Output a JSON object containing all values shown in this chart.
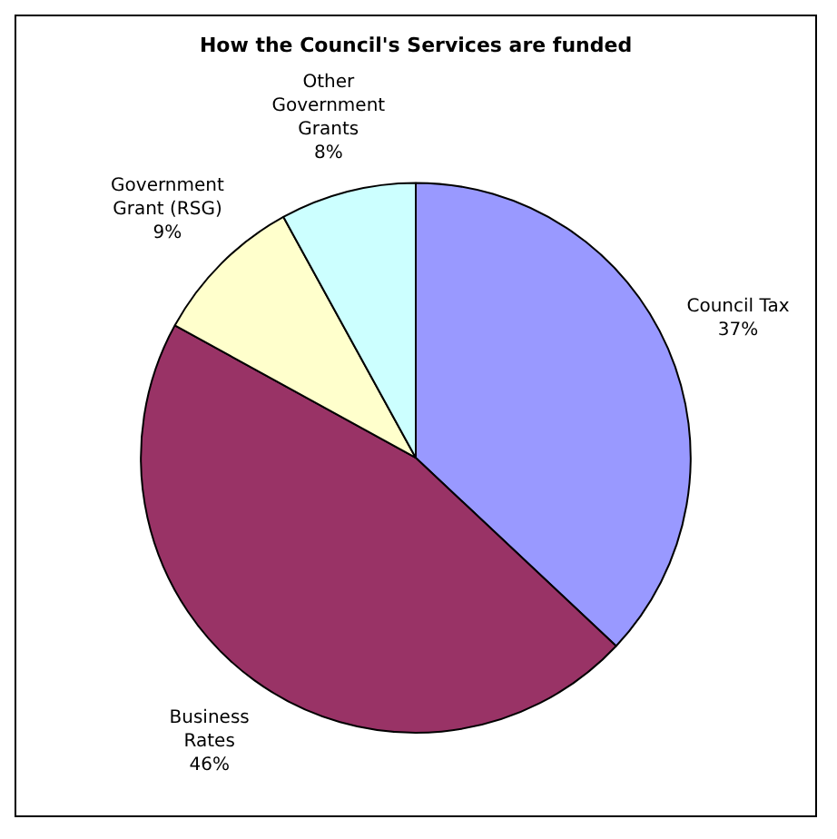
{
  "chart_data": {
    "type": "pie",
    "title": "How the Council's Services are funded",
    "categories": [
      "Council Tax",
      "Business Rates",
      "Government Grant (RSG)",
      "Other Government Grants"
    ],
    "values": [
      37,
      46,
      9,
      8
    ],
    "value_labels": [
      "37%",
      "46%",
      "9%",
      "8%"
    ],
    "colors": [
      "#9999ff",
      "#993366",
      "#ffffcc",
      "#ccffff"
    ],
    "legend": false
  }
}
